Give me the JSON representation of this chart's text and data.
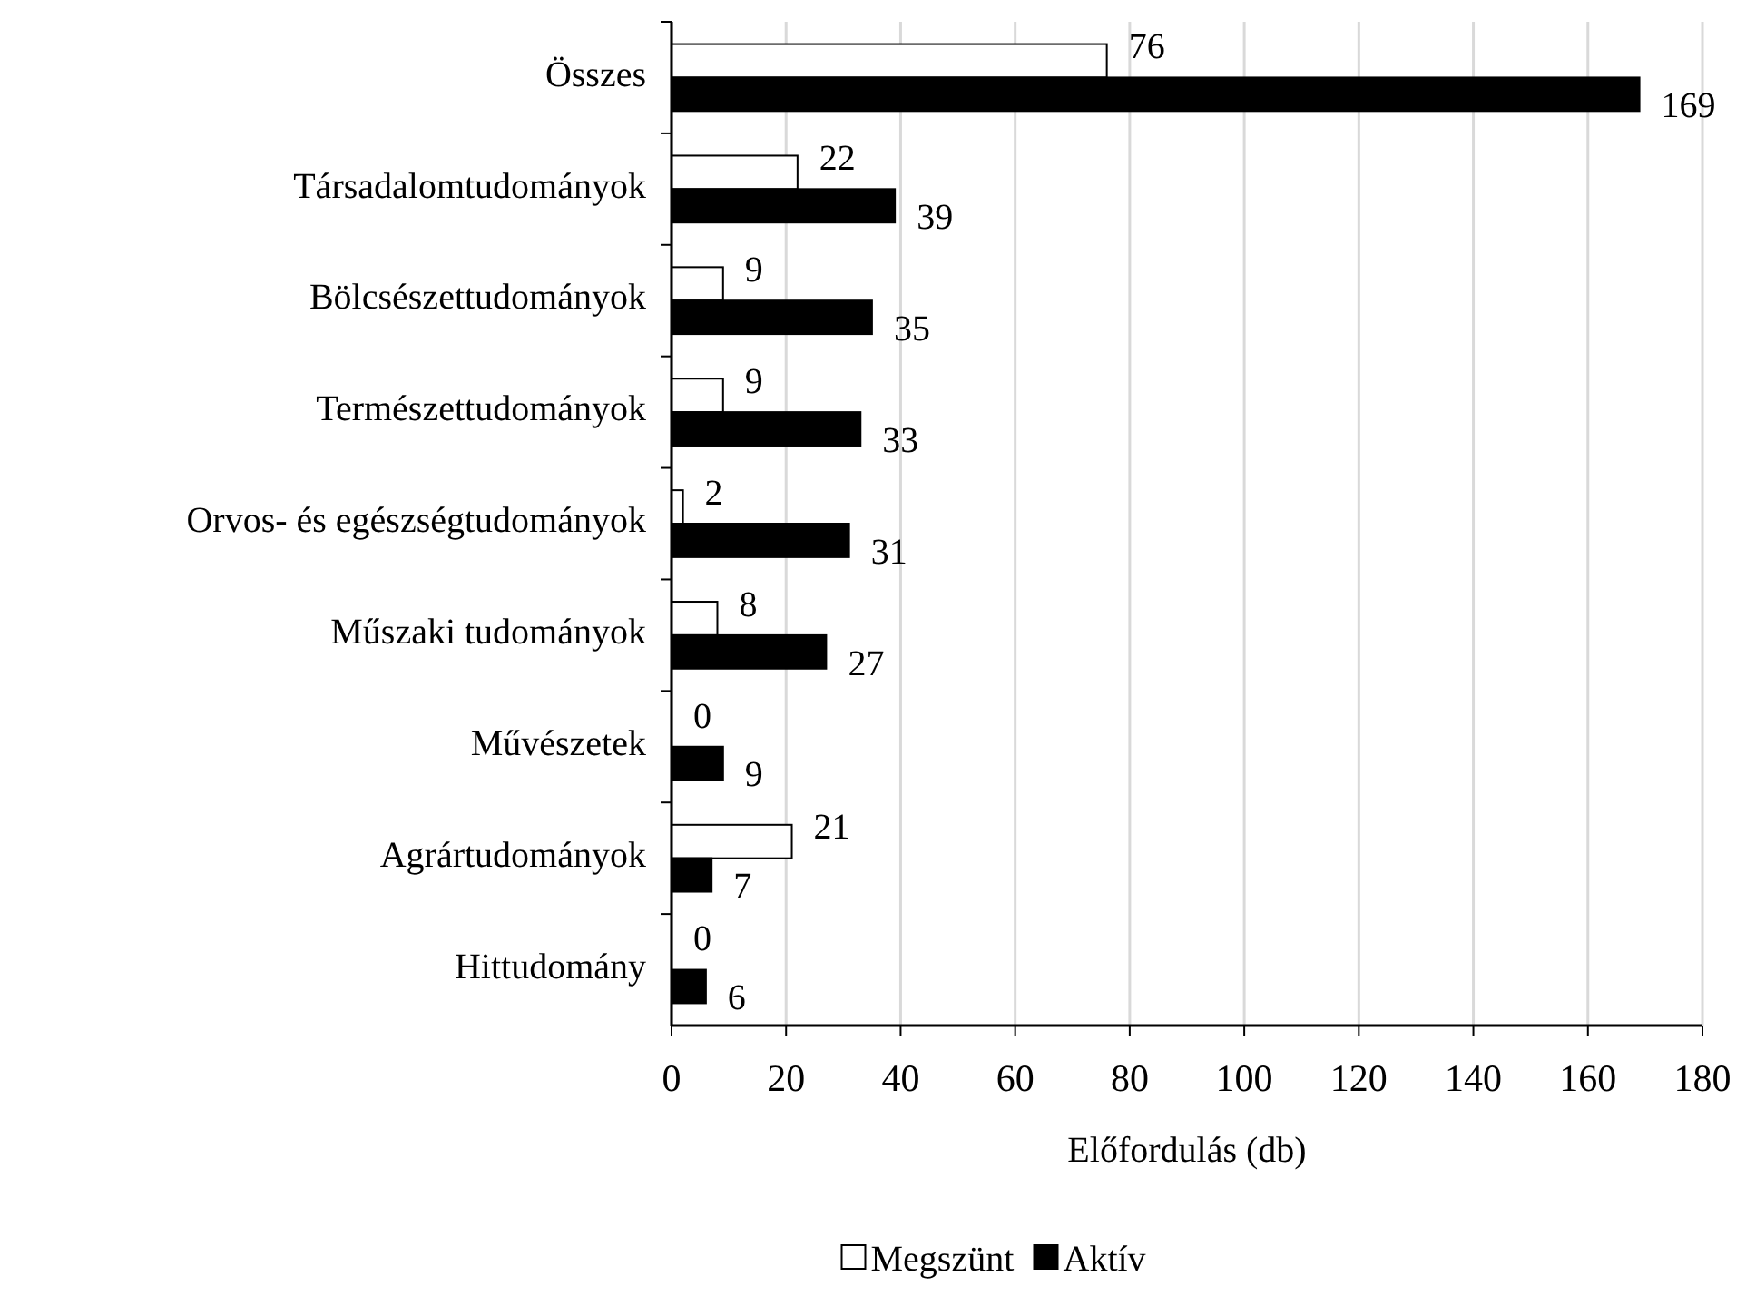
{
  "chart_data": {
    "type": "bar",
    "orientation": "horizontal",
    "xlabel": "Előfordulás (db)",
    "categories": [
      "Összes",
      "Társadalomtudományok",
      "Bölcsészettudományok",
      "Természettudományok",
      "Orvos- és egészségtudományok",
      "Műszaki tudományok",
      "Művészetek",
      "Agrártudományok",
      "Hittudomány"
    ],
    "series": [
      {
        "name": "Megszünt",
        "color": "#ffffff",
        "values": [
          76,
          22,
          9,
          9,
          2,
          8,
          0,
          21,
          0
        ]
      },
      {
        "name": "Aktív",
        "color": "#000000",
        "values": [
          169,
          39,
          35,
          33,
          31,
          27,
          9,
          7,
          6
        ]
      }
    ],
    "xlim": [
      0,
      180
    ],
    "xticks": [
      0,
      20,
      40,
      60,
      80,
      100,
      120,
      140,
      160,
      180
    ],
    "grid": "x",
    "legend": "bottom",
    "data_labels": true
  }
}
